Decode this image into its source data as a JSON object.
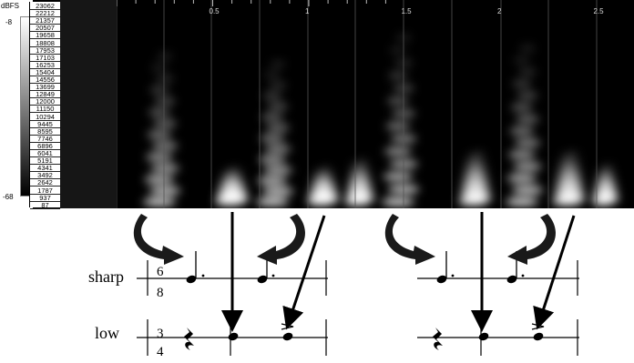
{
  "colorbar": {
    "unit_label": "dBFS",
    "top_value": "-8",
    "bottom_value": "-68"
  },
  "frequency_labels": [
    "23062",
    "22212",
    "21357",
    "20507",
    "19658",
    "18808",
    "17953",
    "17103",
    "16253",
    "15404",
    "14556",
    "13699",
    "12849",
    "12000",
    "11150",
    "10294",
    "9445",
    "8595",
    "7746",
    "6896",
    "6041",
    "5191",
    "4341",
    "3492",
    "2642",
    "1787",
    "937",
    "87"
  ],
  "time_ticks": [
    "0.5",
    "1",
    "1.5",
    "2",
    "2.5"
  ],
  "notation": {
    "row_labels": {
      "upper": "sharp",
      "lower": "low"
    },
    "time_signatures": {
      "upper": [
        "6",
        "8"
      ],
      "lower": [
        "3",
        "4"
      ]
    }
  }
}
